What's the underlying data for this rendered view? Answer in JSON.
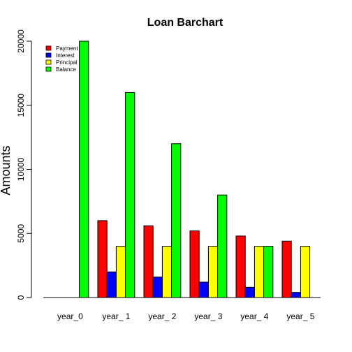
{
  "chart_data": {
    "type": "bar",
    "title": "Loan Barchart",
    "xlabel": "",
    "ylabel": "Amounts",
    "categories": [
      "year_0",
      "year_ 1",
      "year_ 2",
      "year_ 3",
      "year_ 4",
      "year_ 5"
    ],
    "series": [
      {
        "name": "Payment",
        "color": "#ff0000",
        "values": [
          0,
          6000,
          5600,
          5200,
          4800,
          4400
        ]
      },
      {
        "name": "Interest",
        "color": "#0000ff",
        "values": [
          0,
          2000,
          1600,
          1200,
          800,
          400
        ]
      },
      {
        "name": "Principal",
        "color": "#ffff00",
        "values": [
          0,
          4000,
          4000,
          4000,
          4000,
          4000
        ]
      },
      {
        "name": "Balance",
        "color": "#00ff00",
        "values": [
          20000,
          16000,
          12000,
          8000,
          4000,
          0
        ]
      }
    ],
    "ylim": [
      0,
      20000
    ],
    "yticks": [
      0,
      5000,
      10000,
      15000,
      20000
    ],
    "ytick_labels": [
      "0",
      "5000",
      "10000",
      "15000",
      "20000"
    ],
    "legend": "top-left",
    "grid": false
  }
}
